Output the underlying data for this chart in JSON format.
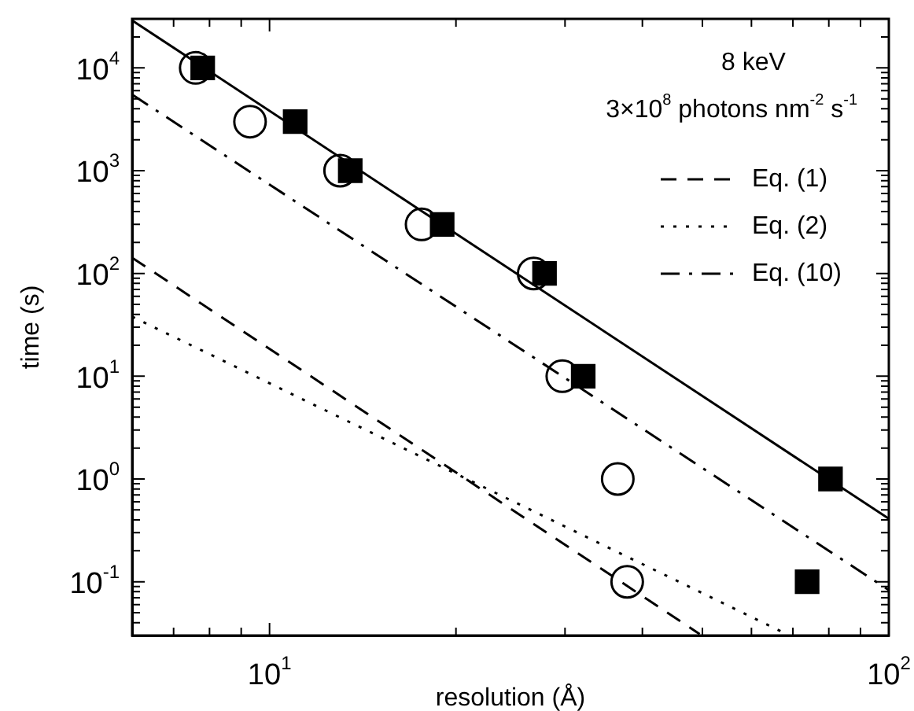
{
  "chart_data": {
    "type": "scatter",
    "xlabel": "resolution (Å)",
    "ylabel": "time (s)",
    "log": "xy",
    "grid": false,
    "legend": "top right",
    "annotations": [
      "8 keV",
      "3×10$^{8}$ photons nm$^{-2}$ s$^{-1}$"
    ],
    "xlim": [
      6,
      100
    ],
    "ylim": [
      0.03,
      30000
    ],
    "xticks": [
      {
        "value": 7,
        "label": null
      },
      {
        "value": 8,
        "label": null
      },
      {
        "value": 9,
        "label": null
      },
      {
        "value": 10,
        "label": "10$^{1}$"
      },
      {
        "value": 20,
        "label": null
      },
      {
        "value": 30,
        "label": null
      },
      {
        "value": 40,
        "label": null
      },
      {
        "value": 50,
        "label": null
      },
      {
        "value": 60,
        "label": null
      },
      {
        "value": 70,
        "label": null
      },
      {
        "value": 80,
        "label": null
      },
      {
        "value": 90,
        "label": null
      },
      {
        "value": 100,
        "label": "10$^{2}$"
      }
    ],
    "yticks": [
      {
        "value": 0.04,
        "label": null
      },
      {
        "value": 0.05,
        "label": null
      },
      {
        "value": 0.06,
        "label": null
      },
      {
        "value": 0.07,
        "label": null
      },
      {
        "value": 0.08,
        "label": null
      },
      {
        "value": 0.09,
        "label": null
      },
      {
        "value": 0.1,
        "label": "10$^{-1}$"
      },
      {
        "value": 0.2,
        "label": null
      },
      {
        "value": 0.3,
        "label": null
      },
      {
        "value": 0.4,
        "label": null
      },
      {
        "value": 0.5,
        "label": null
      },
      {
        "value": 0.6,
        "label": null
      },
      {
        "value": 0.7,
        "label": null
      },
      {
        "value": 0.8,
        "label": null
      },
      {
        "value": 0.9,
        "label": null
      },
      {
        "value": 1,
        "label": "10$^{0}$"
      },
      {
        "value": 2,
        "label": null
      },
      {
        "value": 3,
        "label": null
      },
      {
        "value": 4,
        "label": null
      },
      {
        "value": 5,
        "label": null
      },
      {
        "value": 6,
        "label": null
      },
      {
        "value": 7,
        "label": null
      },
      {
        "value": 8,
        "label": null
      },
      {
        "value": 9,
        "label": null
      },
      {
        "value": 10,
        "label": "10$^{1}$"
      },
      {
        "value": 20,
        "label": null
      },
      {
        "value": 30,
        "label": null
      },
      {
        "value": 40,
        "label": null
      },
      {
        "value": 50,
        "label": null
      },
      {
        "value": 60,
        "label": null
      },
      {
        "value": 70,
        "label": null
      },
      {
        "value": 80,
        "label": null
      },
      {
        "value": 90,
        "label": null
      },
      {
        "value": 100,
        "label": "10$^{2}$"
      },
      {
        "value": 200,
        "label": null
      },
      {
        "value": 300,
        "label": null
      },
      {
        "value": 400,
        "label": null
      },
      {
        "value": 500,
        "label": null
      },
      {
        "value": 600,
        "label": null
      },
      {
        "value": 700,
        "label": null
      },
      {
        "value": 800,
        "label": null
      },
      {
        "value": 900,
        "label": null
      },
      {
        "value": 1000,
        "label": "10$^{3}$"
      },
      {
        "value": 2000,
        "label": null
      },
      {
        "value": 3000,
        "label": null
      },
      {
        "value": 4000,
        "label": null
      },
      {
        "value": 5000,
        "label": null
      },
      {
        "value": 6000,
        "label": null
      },
      {
        "value": 7000,
        "label": null
      },
      {
        "value": 8000,
        "label": null
      },
      {
        "value": 9000,
        "label": null
      },
      {
        "value": 10000,
        "label": "10$^{4}$"
      },
      {
        "value": 20000,
        "label": null
      }
    ],
    "series": [
      {
        "type": "line",
        "color": "#000000",
        "line_style": "solid",
        "marker": "none",
        "x": [
          6,
          100
        ],
        "values": [
          29000,
          0.41
        ]
      },
      {
        "type": "line",
        "name": "Eq. (1)",
        "color": "#000000",
        "line_style": "dashed",
        "marker": "none",
        "x": [
          6,
          49.5
        ],
        "values": [
          142,
          0.031
        ]
      },
      {
        "type": "line",
        "name": "Eq. (2)",
        "color": "#000000",
        "line_style": "dotted",
        "marker": "none",
        "x": [
          6,
          68.4
        ],
        "values": [
          38,
          0.031
        ]
      },
      {
        "type": "line",
        "name": "Eq. (10)",
        "color": "#000000",
        "line_style": "dashdot",
        "marker": "none",
        "x": [
          6,
          100
        ],
        "values": [
          5500,
          0.083
        ]
      },
      {
        "color": "#000000",
        "marker": "circle",
        "x": [
          7.6,
          9.3,
          13,
          17.6,
          26.7,
          29.7,
          36.5,
          37.8
        ],
        "values": [
          10000,
          3000,
          1000,
          300,
          100,
          10,
          1,
          0.1
        ]
      },
      {
        "color": "#000000",
        "marker": "square",
        "x": [
          7.8,
          11,
          13.5,
          19,
          27.8,
          32.1,
          80.5,
          73.8
        ],
        "values": [
          10000,
          3000,
          1000,
          300,
          100,
          10,
          1,
          0.1
        ]
      }
    ]
  }
}
